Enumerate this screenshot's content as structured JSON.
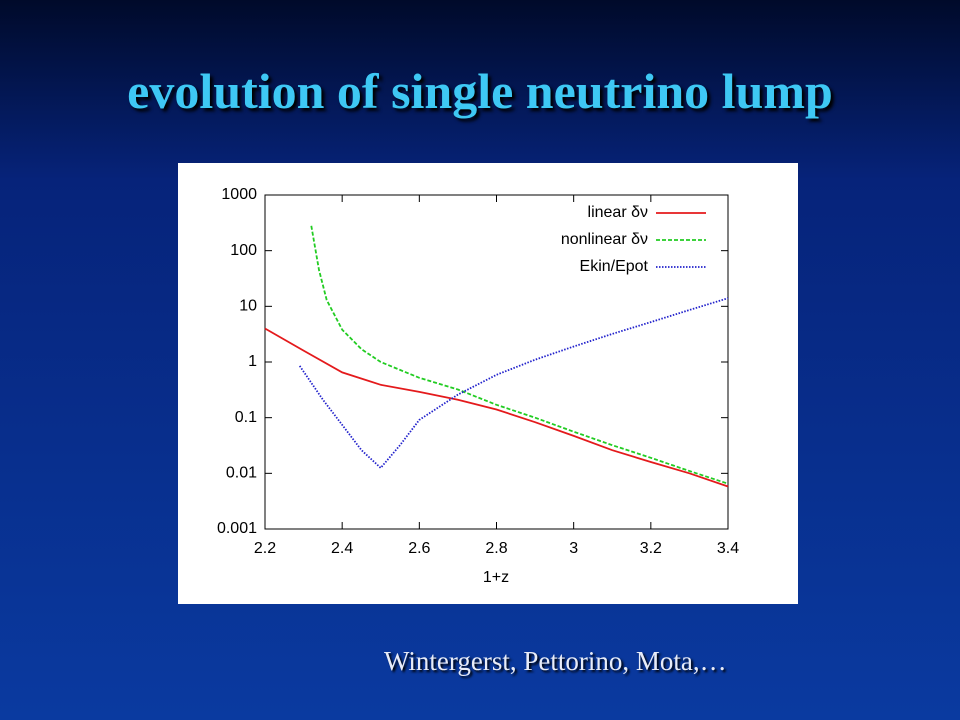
{
  "title": "evolution of single neutrino lump",
  "caption": "Wintergerst, Pettorino, Mota,…",
  "chart_data": {
    "type": "line",
    "x_label": "1+z",
    "xlim": [
      2.2,
      3.4
    ],
    "xticks": [
      2.2,
      2.4,
      2.6,
      2.8,
      3,
      3.2,
      3.4
    ],
    "ylim": [
      0.001,
      1000
    ],
    "yticks": [
      0.001,
      0.01,
      0.1,
      1,
      10,
      100,
      1000
    ],
    "y_log": true,
    "legend": "top-right",
    "series": [
      {
        "name": "linear δν",
        "color": "#e41a1c",
        "style": "solid",
        "x": [
          2.2,
          2.3,
          2.4,
          2.5,
          2.6,
          2.7,
          2.8,
          2.9,
          3.0,
          3.1,
          3.2,
          3.3,
          3.4
        ],
        "values": [
          4,
          1.6,
          0.65,
          0.39,
          0.29,
          0.21,
          0.14,
          0.083,
          0.047,
          0.026,
          0.016,
          0.01,
          0.0058
        ]
      },
      {
        "name": "nonlinear δν",
        "color": "#22cc22",
        "style": "dashed",
        "x": [
          2.32,
          2.34,
          2.36,
          2.4,
          2.45,
          2.5,
          2.6,
          2.7,
          2.8,
          2.9,
          3.0,
          3.1,
          3.2,
          3.3,
          3.4
        ],
        "values": [
          280,
          45,
          13,
          3.8,
          1.7,
          1.0,
          0.52,
          0.32,
          0.17,
          0.1,
          0.056,
          0.032,
          0.019,
          0.011,
          0.0065
        ]
      },
      {
        "name": "Ekin/Epot",
        "color": "#2222cc",
        "style": "dotted",
        "x": [
          2.29,
          2.35,
          2.4,
          2.45,
          2.5,
          2.55,
          2.6,
          2.7,
          2.8,
          2.9,
          3.0,
          3.1,
          3.2,
          3.3,
          3.4
        ],
        "values": [
          0.85,
          0.21,
          0.074,
          0.026,
          0.0125,
          0.032,
          0.091,
          0.26,
          0.59,
          1.1,
          1.9,
          3.2,
          5.2,
          8.6,
          14
        ]
      }
    ]
  }
}
